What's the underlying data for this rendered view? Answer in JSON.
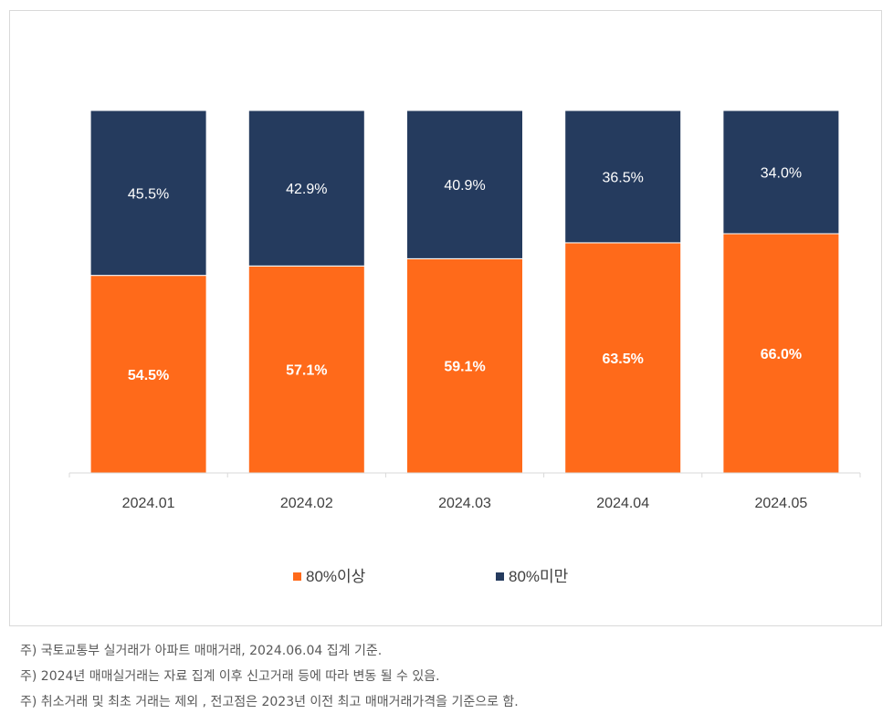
{
  "chart_data": {
    "type": "bar",
    "stacked": true,
    "percent_stacked": true,
    "categories": [
      "2024.01",
      "2024.02",
      "2024.03",
      "2024.04",
      "2024.05"
    ],
    "series": [
      {
        "name": "80%이상",
        "values": [
          54.5,
          57.1,
          59.1,
          63.5,
          66.0
        ],
        "color": "#ff6a1a",
        "label_color": "#ffffff",
        "label_bold": true
      },
      {
        "name": "80%미만",
        "values": [
          45.5,
          42.9,
          40.9,
          36.5,
          34.0
        ],
        "color": "#253b5e",
        "label_color": "#ffffff",
        "label_bold": false
      }
    ],
    "value_suffix": "%",
    "ylim": [
      0,
      100
    ],
    "legend_position": "bottom",
    "grid": false
  },
  "footnotes": [
    "주) 국토교통부 실거래가 아파트 매매거래, 2024.06.04 집계 기준.",
    "주) 2024년 매매실거래는 자료 집계 이후 신고거래 등에 따라 변동 될 수 있음.",
    "주) 취소거래 및 최초 거래는 제외 , 전고점은 2023년 이전 최고 매매거래가격을 기준으로 함."
  ]
}
